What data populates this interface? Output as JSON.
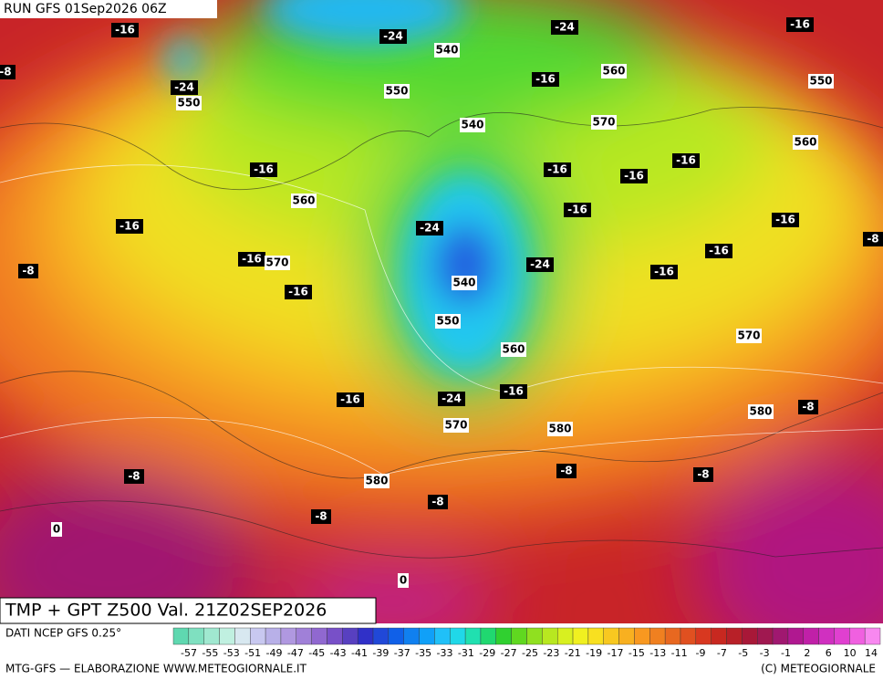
{
  "header": {
    "run": "RUN GFS 01Sep2026 06Z"
  },
  "title": "TMP + GPT Z500 Val. 21Z02SEP2026",
  "source": "DATI NCEP GFS 0.25°",
  "credit_left": "MTG-GFS — ELABORAZIONE WWW.METEOGIORNALE.IT",
  "credit_right": "(C) METEOGIORNALE",
  "temperature_labels": [
    "-16",
    "-24",
    "-24",
    "-16",
    "-8",
    "-24",
    "-16",
    "-16",
    "-16",
    "-16",
    "-16",
    "-16",
    "-24",
    "-16",
    "-16",
    "-8",
    "-16",
    "-24",
    "-16",
    "-16",
    "-8",
    "-16",
    "-16",
    "-24",
    "-16",
    "-8",
    "-8",
    "-8",
    "-8",
    "-8",
    "-8"
  ],
  "height_labels": [
    "540",
    "550",
    "560",
    "550",
    "550",
    "540",
    "570",
    "560",
    "560",
    "570",
    "540",
    "550",
    "560",
    "570",
    "570",
    "580",
    "580",
    "580",
    "0",
    "0"
  ],
  "colorbar": {
    "colors": [
      "#5fd8b0",
      "#7fe0c0",
      "#a0e8d0",
      "#c0f0e0",
      "#d8e8f0",
      "#c8c8f0",
      "#b8b0e8",
      "#b098e0",
      "#a080d8",
      "#9068d0",
      "#7850c8",
      "#5840c0",
      "#3030c8",
      "#2048d8",
      "#1060e8",
      "#1080f0",
      "#10a0f8",
      "#20c0f8",
      "#20d8e8",
      "#20e0b0",
      "#20d870",
      "#30d030",
      "#60d820",
      "#90e020",
      "#b8e820",
      "#d8f020",
      "#f0f020",
      "#f8e020",
      "#f8c820",
      "#f8b020",
      "#f89820",
      "#f08020",
      "#e86820",
      "#e05020",
      "#d83820",
      "#c82820",
      "#b82028",
      "#a81838",
      "#a01850",
      "#a01870",
      "#b01890",
      "#c020a8",
      "#d030c0",
      "#e040d0",
      "#f060e0",
      "#f888f0"
    ],
    "labels": [
      "-57",
      "-55",
      "-53",
      "-51",
      "-49",
      "-47",
      "-45",
      "-43",
      "-41",
      "-39",
      "-37",
      "-35",
      "-33",
      "-31",
      "-29",
      "-27",
      "-25",
      "-23",
      "-21",
      "-19",
      "-17",
      "-15",
      "-13",
      "-11",
      "-9",
      "-7",
      "-5",
      "-3",
      "-1",
      "2",
      "6",
      "10",
      "14"
    ]
  }
}
